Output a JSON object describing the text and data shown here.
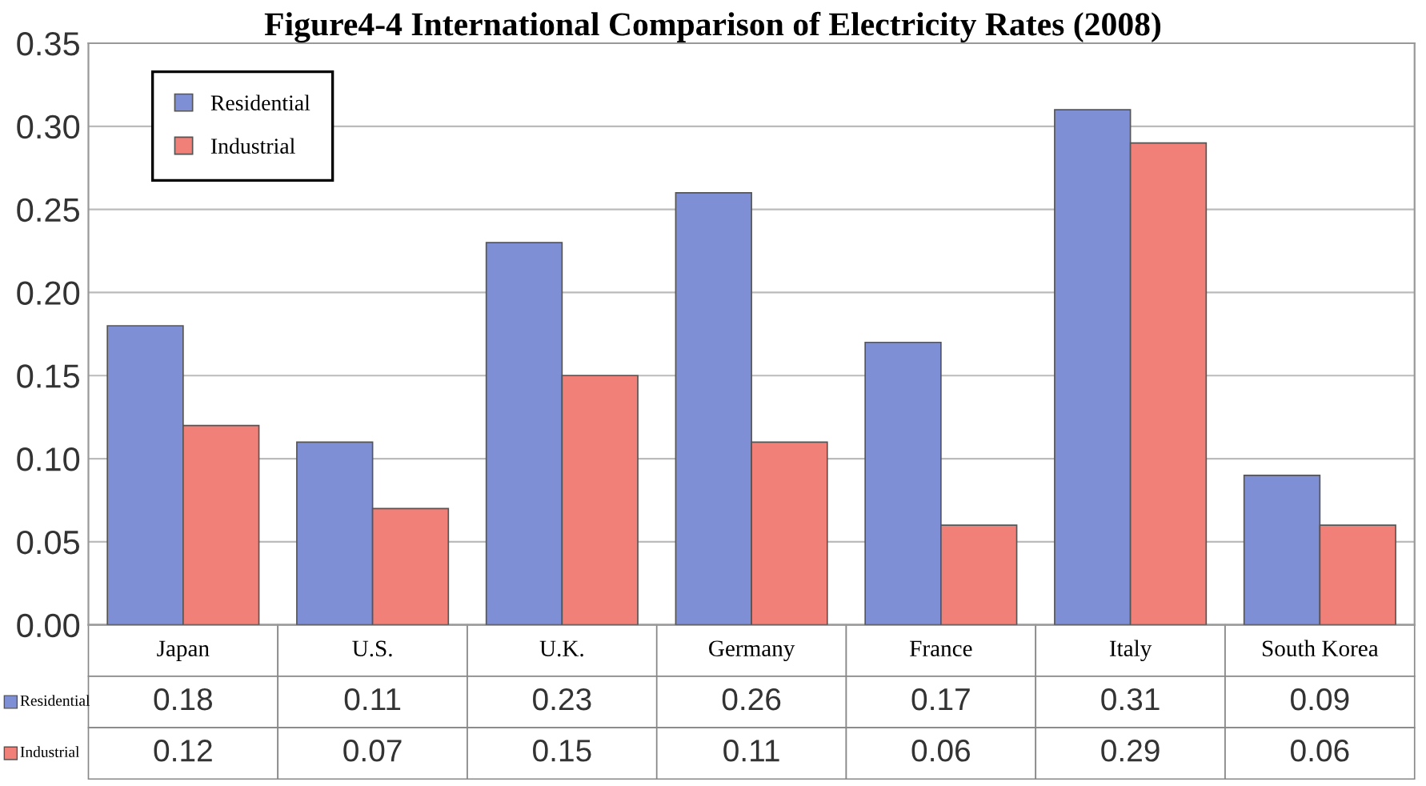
{
  "chart_data": {
    "type": "bar",
    "title": "Figure4-4 International Comparison of Electricity Rates (2008)",
    "categories": [
      "Japan",
      "U.S.",
      "U.K.",
      "Germany",
      "France",
      "Italy",
      "South Korea"
    ],
    "series": [
      {
        "name": "Residential",
        "color": "#7f8fd6",
        "values": [
          0.18,
          0.11,
          0.23,
          0.26,
          0.17,
          0.31,
          0.09
        ]
      },
      {
        "name": "Industrial",
        "color": "#f08078",
        "values": [
          0.12,
          0.07,
          0.15,
          0.11,
          0.06,
          0.29,
          0.06
        ]
      }
    ],
    "ylim": [
      0,
      0.35
    ],
    "yticks": [
      {
        "value": 0,
        "label": "0.00"
      },
      {
        "value": 0.05,
        "label": "0.05"
      },
      {
        "value": 0.1,
        "label": "0.10"
      },
      {
        "value": 0.15,
        "label": "0.15"
      },
      {
        "value": 0.2,
        "label": "0.20"
      },
      {
        "value": 0.25,
        "label": "0.25"
      },
      {
        "value": 0.3,
        "label": "0.30"
      },
      {
        "value": 0.35,
        "label": "0.35"
      }
    ],
    "grid": "y",
    "legend": "top left",
    "data_labels": true
  }
}
